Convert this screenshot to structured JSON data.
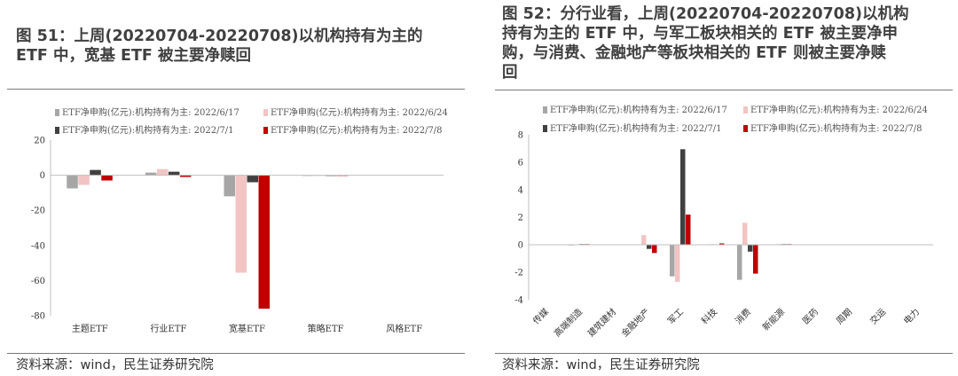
{
  "figures": [
    {
      "title": "图 51：上周(20220704-20220708)以机构持有为主的\nETF 中，宽基 ETF 被主要净赎回",
      "source": "资料来源：wind，民生证券研究院"
    },
    {
      "title": "图 52：分行业看，上周(20220704-20220708)以机构\n持有为主的 ETF 中，与军工板块相关的 ETF 被主要净申\n购，与消费、金融地产等板块相关的 ETF 则被主要净赎\n回",
      "source": "资料来源：wind，民生证券研究院"
    }
  ],
  "chart_data": [
    {
      "type": "bar",
      "categories": [
        "主题ETF",
        "行业ETF",
        "宽基ETF",
        "策略ETF",
        "风格ETF"
      ],
      "series": [
        {
          "name": "ETF净申购(亿元):机构持有为主: 2022/6/17",
          "color": "#a6a6a6",
          "values": [
            -7.5,
            1.5,
            -12,
            -0.3,
            0
          ]
        },
        {
          "name": "ETF净申购(亿元):机构持有为主: 2022/6/24",
          "color": "#f2c4c4",
          "values": [
            -5.5,
            3.5,
            -55.5,
            -0.2,
            0
          ]
        },
        {
          "name": "ETF净申购(亿元):机构持有为主: 2022/7/1",
          "color": "#404040",
          "values": [
            3,
            2,
            -4,
            -0.3,
            0
          ]
        },
        {
          "name": "ETF净申购(亿元):机构持有为主: 2022/7/8",
          "color": "#c00000",
          "values": [
            -3,
            -1,
            -76,
            -0.3,
            0
          ]
        }
      ],
      "ylim": [
        -80,
        20
      ],
      "yticks": [
        "20",
        "0",
        "-20",
        "-40",
        "-60",
        "-80"
      ],
      "xlabel": "",
      "ylabel": "",
      "legend": "top"
    },
    {
      "type": "bar",
      "categories": [
        "传媒",
        "高端制造",
        "建筑建材",
        "金融地产",
        "军工",
        "科技",
        "消费",
        "新能源",
        "医药",
        "周期",
        "交运",
        "电力"
      ],
      "series": [
        {
          "name": "ETF净申购(亿元):机构持有为主: 2022/6/17",
          "color": "#a6a6a6",
          "values": [
            0,
            -0.05,
            0,
            0,
            -2.3,
            0,
            -2.55,
            0.02,
            0,
            0,
            0,
            0
          ]
        },
        {
          "name": "ETF净申购(亿元):机构持有为主: 2022/6/24",
          "color": "#f2c4c4",
          "values": [
            0,
            0.02,
            0,
            0.7,
            -2.7,
            0.05,
            1.6,
            0.05,
            0,
            0,
            0,
            0
          ]
        },
        {
          "name": "ETF净申购(亿元):机构持有为主: 2022/7/1",
          "color": "#404040",
          "values": [
            0,
            0.05,
            0,
            -0.3,
            6.95,
            0,
            -0.5,
            0.05,
            0,
            0,
            0,
            0
          ]
        },
        {
          "name": "ETF净申购(亿元):机构持有为主: 2022/7/8",
          "color": "#c00000",
          "values": [
            0,
            0.05,
            0,
            -0.6,
            2.2,
            0.1,
            -2.1,
            0.05,
            0,
            0,
            0,
            0
          ]
        }
      ],
      "ylim": [
        -4,
        8
      ],
      "yticks": [
        "8",
        "6",
        "4",
        "2",
        "0",
        "-2",
        "-4"
      ],
      "xlabel": "",
      "ylabel": "",
      "legend": "top"
    }
  ]
}
